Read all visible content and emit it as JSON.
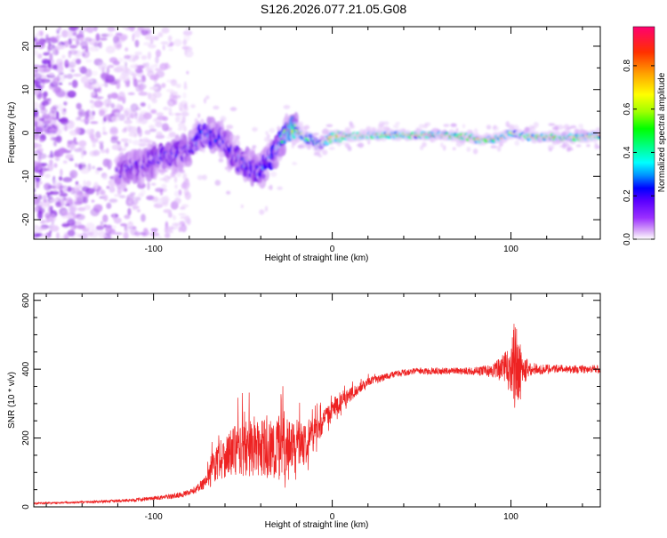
{
  "title": "S126.2026.077.21.05.G08",
  "colors": {
    "snr_line": "#ee2222",
    "axis": "#000000",
    "background": "#ffffff"
  },
  "chart_data": [
    {
      "type": "heatmap",
      "title": "",
      "xlabel": "Height of straight line (km)",
      "ylabel": "Frequency (Hz)",
      "xlim": [
        -167,
        150
      ],
      "ylim": [
        -24.5,
        24.5
      ],
      "xticks": [
        -100,
        0,
        100
      ],
      "xtick_labels": [
        "-100",
        "0",
        "100"
      ],
      "yticks": [
        -20,
        -10,
        0,
        10,
        20
      ],
      "ytick_labels": [
        "-20",
        "-10",
        "0",
        "10",
        "20"
      ],
      "colorbar": {
        "label": "Normalized spectral amplitude",
        "range": [
          0,
          0.98
        ],
        "ticks": [
          0,
          0.2,
          0.4,
          0.6,
          0.8
        ],
        "tick_labels": [
          "0.0",
          "0.2",
          "0.4",
          "0.6",
          "0.8"
        ],
        "colormap": [
          "#ffffff",
          "#d8a8f8",
          "#8a2be2",
          "#5a00ff",
          "#0000ff",
          "#00a0ff",
          "#00ffff",
          "#00ff80",
          "#00ff00",
          "#c0ff00",
          "#ffff00",
          "#ffa000",
          "#ff3000",
          "#ff0060"
        ]
      },
      "ridge": {
        "x": [
          -120,
          -110,
          -100,
          -90,
          -80,
          -75,
          -70,
          -65,
          -60,
          -55,
          -50,
          -45,
          -40,
          -35,
          -30,
          -25,
          -22,
          -18,
          -15,
          -10,
          -8,
          -5,
          0,
          20,
          40,
          60,
          78,
          80,
          85,
          90,
          95,
          100,
          110,
          120,
          130,
          140,
          150
        ],
        "y": [
          -9,
          -8,
          -6,
          -5,
          -4,
          -1,
          0,
          -1,
          -2,
          -5,
          -7,
          -8,
          -9,
          -6,
          -3,
          1,
          1,
          0,
          -1,
          -2,
          -3,
          -2,
          -1,
          -0.5,
          -0.5,
          -0.5,
          -1,
          -1.5,
          -1.5,
          -1.5,
          -1,
          0,
          -1,
          -1,
          -1,
          -1,
          -0.5
        ],
        "peak_amplitude": [
          0.25,
          0.28,
          0.3,
          0.3,
          0.35,
          0.4,
          0.42,
          0.35,
          0.3,
          0.3,
          0.35,
          0.35,
          0.4,
          0.4,
          0.5,
          0.75,
          0.8,
          0.75,
          0.6,
          0.55,
          0.55,
          0.6,
          0.9,
          0.9,
          0.9,
          0.92,
          0.95,
          0.95,
          0.95,
          0.95,
          0.9,
          0.8,
          0.9,
          0.95,
          0.95,
          0.9,
          0.85
        ]
      },
      "noise_region_xmax": -80
    },
    {
      "type": "line",
      "title": "",
      "xlabel": "Height of straight line (km)",
      "ylabel": "SNR (10 * v/v)",
      "xlim": [
        -167,
        150
      ],
      "ylim": [
        0,
        620
      ],
      "xticks": [
        -100,
        0,
        100
      ],
      "xtick_labels": [
        "-100",
        "0",
        "100"
      ],
      "yticks": [
        0,
        200,
        400,
        600
      ],
      "ytick_labels": [
        "0",
        "200",
        "400",
        "600"
      ],
      "series": [
        {
          "name": "SNR",
          "x": [
            -167,
            -150,
            -130,
            -110,
            -100,
            -90,
            -80,
            -75,
            -70,
            -65,
            -60,
            -55,
            -50,
            -45,
            -40,
            -35,
            -30,
            -25,
            -20,
            -15,
            -10,
            -5,
            0,
            5,
            10,
            15,
            20,
            25,
            30,
            40,
            50,
            60,
            70,
            80,
            90,
            95,
            100,
            102,
            104,
            106,
            110,
            120,
            130,
            140,
            150
          ],
          "y": [
            10,
            12,
            15,
            20,
            25,
            30,
            40,
            55,
            80,
            110,
            130,
            140,
            145,
            150,
            150,
            145,
            140,
            150,
            155,
            170,
            200,
            240,
            270,
            300,
            320,
            340,
            360,
            370,
            380,
            390,
            395,
            395,
            395,
            395,
            395,
            400,
            400,
            400,
            390,
            400,
            400,
            400,
            400,
            400,
            400
          ],
          "noise_amplitude": [
            6,
            6,
            8,
            10,
            12,
            14,
            18,
            25,
            50,
            70,
            80,
            90,
            100,
            110,
            110,
            110,
            120,
            100,
            100,
            80,
            60,
            40,
            40,
            35,
            25,
            18,
            15,
            12,
            10,
            10,
            10,
            10,
            10,
            12,
            20,
            40,
            80,
            150,
            140,
            60,
            20,
            14,
            12,
            12,
            12
          ]
        }
      ]
    }
  ]
}
